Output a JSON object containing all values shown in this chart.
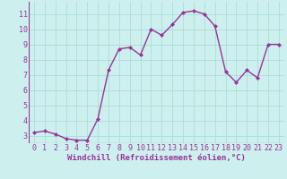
{
  "x": [
    0,
    1,
    2,
    3,
    4,
    5,
    6,
    7,
    8,
    9,
    10,
    11,
    12,
    13,
    14,
    15,
    16,
    17,
    18,
    19,
    20,
    21,
    22,
    23
  ],
  "y": [
    3.2,
    3.3,
    3.1,
    2.8,
    2.7,
    2.7,
    4.1,
    7.3,
    8.7,
    8.8,
    8.3,
    10.0,
    9.6,
    10.3,
    11.1,
    11.2,
    11.0,
    10.2,
    7.2,
    6.5,
    7.3,
    6.8,
    9.0,
    9.0
  ],
  "line_color": "#993399",
  "marker": "D",
  "marker_size": 2,
  "bg_color": "#cdf0ee",
  "grid_color": "#aaddd8",
  "xlabel": "Windchill (Refroidissement éolien,°C)",
  "ylim": [
    2.5,
    11.8
  ],
  "xlim": [
    -0.5,
    23.5
  ],
  "yticks": [
    3,
    4,
    5,
    6,
    7,
    8,
    9,
    10,
    11
  ],
  "xticks": [
    0,
    1,
    2,
    3,
    4,
    5,
    6,
    7,
    8,
    9,
    10,
    11,
    12,
    13,
    14,
    15,
    16,
    17,
    18,
    19,
    20,
    21,
    22,
    23
  ],
  "xlabel_fontsize": 6.5,
  "tick_fontsize": 6,
  "line_width": 1.0
}
